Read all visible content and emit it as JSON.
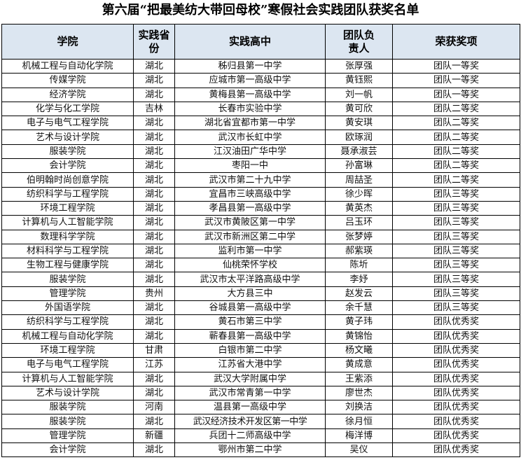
{
  "title": "第六届“把最美纺大带回母校”寒假社会实践团队获奖名单",
  "headers": [
    "学院",
    "实践省份",
    "实践高中",
    "团队负责人",
    "荣获奖项"
  ],
  "rows": [
    [
      "机械工程与自动化学院",
      "湖北",
      "秭归县第一中学",
      "张厚强",
      "团队一等奖"
    ],
    [
      "传媒学院",
      "湖北",
      "应城市第一高级中学",
      "黄钰熙",
      "团队一等奖"
    ],
    [
      "经济学院",
      "湖北",
      "黄梅县第一高级中学",
      "刘一帆",
      "团队一等奖"
    ],
    [
      "化学与化工学院",
      "吉林",
      "长春市实验中学",
      "黄可欣",
      "团队二等奖"
    ],
    [
      "电子与电气工程学院",
      "湖北",
      "湖北省宜都市第一中学",
      "黄安琪",
      "团队二等奖"
    ],
    [
      "艺术与设计学院",
      "湖北",
      "武汉市长虹中学",
      "欧琢润",
      "团队二等奖"
    ],
    [
      "服装学院",
      "湖北",
      "江汉油田广华中学",
      "聂承淑芸",
      "团队二等奖"
    ],
    [
      "会计学院",
      "湖北",
      "枣阳一中",
      "孙富琳",
      "团队二等奖"
    ],
    [
      "伯明翰时尚创意学院",
      "湖北",
      "武汉市第二十九中学",
      "周喆圣",
      "团队二等奖"
    ],
    [
      "纺织科学与工程学院",
      "湖北",
      "宜昌市三峡高级中学",
      "徐少晖",
      "团队三等奖"
    ],
    [
      "环境工程学院",
      "湖北",
      "孝昌县第一高级中学",
      "黄英杰",
      "团队三等奖"
    ],
    [
      "计算机与人工智能学院",
      "湖北",
      "武汉市黄陂区第一中学",
      "吕玉环",
      "团队三等奖"
    ],
    [
      "数理科学学院",
      "湖北",
      "武汉市新洲区第二中学",
      "张梦婷",
      "团队三等奖"
    ],
    [
      "材料科学与工程学院",
      "湖北",
      "监利市第一中学",
      "郝紫瑛",
      "团队三等奖"
    ],
    [
      "生物工程与健康学院",
      "湖北",
      "仙桃荣怀学校",
      "陈圻",
      "团队三等奖"
    ],
    [
      "服装学院",
      "湖北",
      "武汉市太平洋路高级中学",
      "李妤",
      "团队三等奖"
    ],
    [
      "管理学院",
      "贵州",
      "大方县三中",
      "赵发云",
      "团队三等奖"
    ],
    [
      "外国语学院",
      "湖北",
      "谷城县第一高级中学",
      "余千慧",
      "团队三等奖"
    ],
    [
      "纺织科学与工程学院",
      "湖北",
      "黄石市第三中学",
      "黄子玮",
      "团队优秀奖"
    ],
    [
      "机械工程与自动化学院",
      "湖北",
      "蕲春县第一高级中学",
      "黄锦怡",
      "团队优秀奖"
    ],
    [
      "环境工程学院",
      "甘肃",
      "白银市第二中学",
      "杨文曦",
      "团队优秀奖"
    ],
    [
      "电子与电气工程学院",
      "江苏",
      "江苏省大港中学",
      "黄成意",
      "团队优秀奖"
    ],
    [
      "计算机与人工智能学院",
      "湖北",
      "武汉大学附属中学",
      "王紫添",
      "团队优秀奖"
    ],
    [
      "艺术与设计学院",
      "湖北",
      "武汉市常青第一中学",
      "廖世杰",
      "团队优秀奖"
    ],
    [
      "服装学院",
      "河南",
      "温县第一高级中学",
      "刘换洁",
      "团队优秀奖"
    ],
    [
      "服装学院",
      "湖北",
      "武汉经济技术开发区第一中学",
      "徐月恒",
      "团队优秀奖"
    ],
    [
      "管理学院",
      "新疆",
      "兵团十二师高级中学",
      "梅洋博",
      "团队优秀奖"
    ],
    [
      "会计学院",
      "湖北",
      "鄂州市第二中学",
      "吴仪",
      "团队优秀奖"
    ]
  ],
  "colors": {
    "header_bg": "#dce6f1"
  }
}
